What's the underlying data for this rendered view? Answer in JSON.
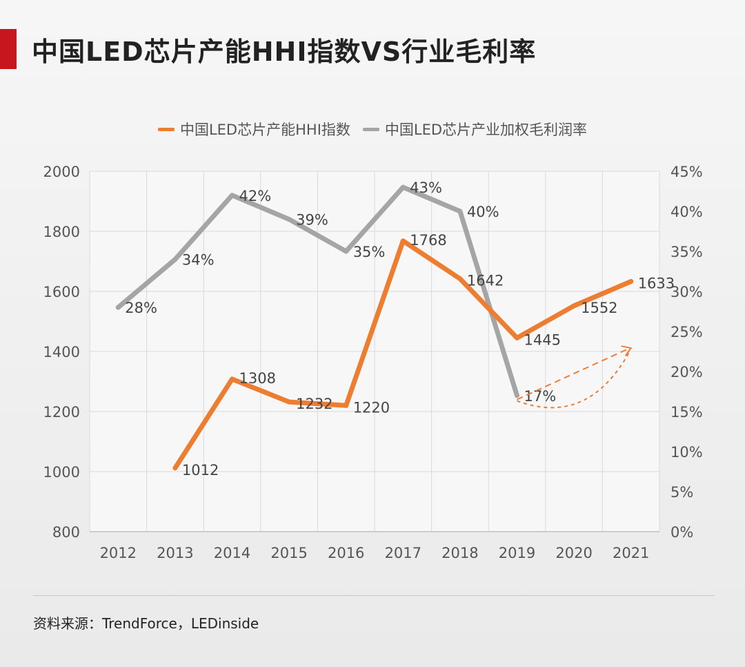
{
  "title": "中国LED芯片产能HHI指数VS行业毛利率",
  "source": "资料来源：TrendForce，LEDinside",
  "colors": {
    "accent": "#c8161e",
    "hhi_line": "#ed7d31",
    "margin_line": "#a5a5a5",
    "plot_bg": "#f7f7f7",
    "grid": "#d9d9d9"
  },
  "chart_data": {
    "type": "line",
    "x": [
      "2012",
      "2013",
      "2014",
      "2015",
      "2016",
      "2017",
      "2018",
      "2019",
      "2020",
      "2021"
    ],
    "series": [
      {
        "name": "中国LED芯片产能HHI指数",
        "axis": "left",
        "values": [
          null,
          1012,
          1308,
          1232,
          1220,
          1768,
          1642,
          1445,
          1552,
          1633
        ],
        "labels": [
          "",
          "1012",
          "1308",
          "1232",
          "1220",
          "1768",
          "1642",
          "1445",
          "1552",
          "1633"
        ]
      },
      {
        "name": "中国LED芯片产业加权毛利润率",
        "axis": "right",
        "values": [
          28,
          34,
          42,
          39,
          35,
          43,
          40,
          17,
          null,
          null
        ],
        "labels": [
          "28%",
          "34%",
          "42%",
          "39%",
          "35%",
          "43%",
          "40%",
          "17%",
          "",
          ""
        ]
      }
    ],
    "ylim_left": [
      800,
      2000
    ],
    "yticks_left": [
      "800",
      "1000",
      "1200",
      "1400",
      "1600",
      "1800",
      "2000"
    ],
    "ylim_right": [
      0,
      45
    ],
    "yticks_right": [
      "0%",
      "5%",
      "10%",
      "15%",
      "20%",
      "25%",
      "30%",
      "35%",
      "40%",
      "45%"
    ],
    "grid": true,
    "legend_position": "top",
    "annotation": "dashed orange arrows from 2019 toward 2021"
  }
}
